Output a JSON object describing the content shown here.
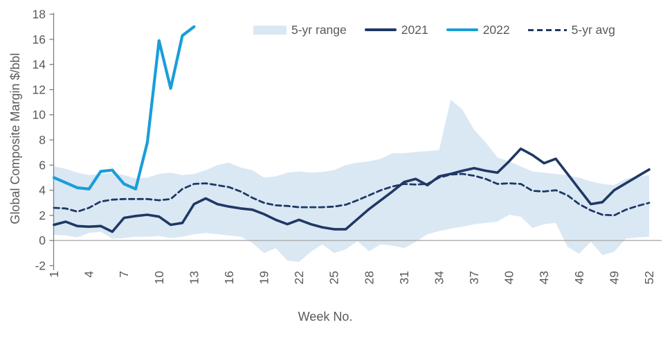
{
  "chart_data": {
    "type": "line",
    "title": "",
    "xlabel": "Week No.",
    "ylabel": "Global Composite Margin $/bbl",
    "xlim": [
      1,
      52
    ],
    "ylim": [
      -2,
      18
    ],
    "x_ticks": [
      1,
      4,
      7,
      10,
      13,
      16,
      19,
      22,
      25,
      28,
      31,
      34,
      37,
      40,
      43,
      46,
      49,
      52
    ],
    "y_ticks": [
      -2,
      0,
      2,
      4,
      6,
      8,
      10,
      12,
      14,
      16,
      18
    ],
    "grid": "zero-line-only",
    "legend_position": "top",
    "colors": {
      "band": "#DAE8F4",
      "navy": "#1F3864",
      "bright_blue": "#1B9DD9",
      "axis_text": "#595959",
      "axis_line": "#7F7F7F",
      "zero_line": "#ABABAB"
    },
    "series": [
      {
        "name": "5-yr range",
        "type": "band",
        "color": "#DAE8F4",
        "upper": [
          5.9,
          5.7,
          5.4,
          5.2,
          5.3,
          5.4,
          5.2,
          4.95,
          5.0,
          5.3,
          5.4,
          5.2,
          5.3,
          5.6,
          6.0,
          6.2,
          5.8,
          5.6,
          5.0,
          5.1,
          5.4,
          5.5,
          5.4,
          5.45,
          5.6,
          6.0,
          6.2,
          6.3,
          6.5,
          6.95,
          6.95,
          7.05,
          7.1,
          7.2,
          11.2,
          10.4,
          8.8,
          7.8,
          6.6,
          6.3,
          5.9,
          5.5,
          5.4,
          5.3,
          5.2,
          5.0,
          4.7,
          4.5,
          4.4,
          4.9,
          5.1,
          5.2
        ],
        "lower": [
          0.45,
          0.4,
          0.25,
          0.6,
          0.7,
          0.15,
          0.2,
          0.3,
          0.3,
          0.35,
          0.2,
          0.3,
          0.5,
          0.6,
          0.5,
          0.4,
          0.3,
          -0.2,
          -1.0,
          -0.6,
          -1.6,
          -1.7,
          -0.9,
          -0.3,
          -1.0,
          -0.7,
          -0.05,
          -0.85,
          -0.3,
          -0.4,
          -0.6,
          -0.1,
          0.5,
          0.75,
          0.95,
          1.1,
          1.3,
          1.4,
          1.5,
          2.05,
          1.9,
          1.0,
          1.3,
          1.4,
          -0.5,
          -1.05,
          -0.1,
          -1.15,
          -0.9,
          0.15,
          0.25,
          0.3
        ]
      },
      {
        "name": "2021",
        "type": "line",
        "style": "solid",
        "color": "#1F3864",
        "stroke_width": 3.6,
        "values": [
          1.25,
          1.5,
          1.15,
          1.1,
          1.15,
          0.7,
          1.8,
          1.95,
          2.05,
          1.9,
          1.25,
          1.4,
          2.9,
          3.35,
          2.9,
          2.7,
          2.55,
          2.45,
          2.1,
          1.65,
          1.3,
          1.65,
          1.3,
          1.05,
          0.9,
          0.9,
          1.7,
          2.5,
          3.2,
          3.9,
          4.65,
          4.9,
          4.4,
          5.1,
          5.3,
          5.55,
          5.75,
          5.55,
          5.4,
          6.3,
          7.3,
          6.8,
          6.15,
          6.5,
          5.3,
          4.1,
          2.9,
          3.05,
          4.0,
          4.55,
          5.1,
          5.65
        ]
      },
      {
        "name": "2022",
        "type": "line",
        "style": "solid",
        "color": "#1B9DD9",
        "stroke_width": 4.2,
        "values": [
          5.0,
          4.6,
          4.2,
          4.1,
          5.5,
          5.6,
          4.5,
          4.1,
          7.8,
          15.9,
          12.1,
          16.3,
          17.0,
          null,
          null,
          null,
          null,
          null,
          null,
          null,
          null,
          null,
          null,
          null,
          null,
          null,
          null,
          null,
          null,
          null,
          null,
          null,
          null,
          null,
          null,
          null,
          null,
          null,
          null,
          null,
          null,
          null,
          null,
          null,
          null,
          null,
          null,
          null,
          null,
          null,
          null,
          null
        ]
      },
      {
        "name": "5-yr avg",
        "type": "line",
        "style": "dashed",
        "color": "#1F3864",
        "stroke_width": 2.8,
        "values": [
          2.6,
          2.55,
          2.3,
          2.6,
          3.1,
          3.25,
          3.3,
          3.3,
          3.3,
          3.2,
          3.3,
          4.1,
          4.5,
          4.55,
          4.4,
          4.25,
          3.9,
          3.4,
          3.0,
          2.8,
          2.75,
          2.65,
          2.65,
          2.65,
          2.7,
          2.85,
          3.2,
          3.6,
          4.0,
          4.3,
          4.5,
          4.45,
          4.5,
          5.0,
          5.25,
          5.3,
          5.15,
          4.9,
          4.5,
          4.55,
          4.5,
          3.95,
          3.9,
          4.0,
          3.6,
          2.9,
          2.4,
          2.05,
          2.0,
          2.45,
          2.75,
          3.0
        ]
      }
    ]
  }
}
